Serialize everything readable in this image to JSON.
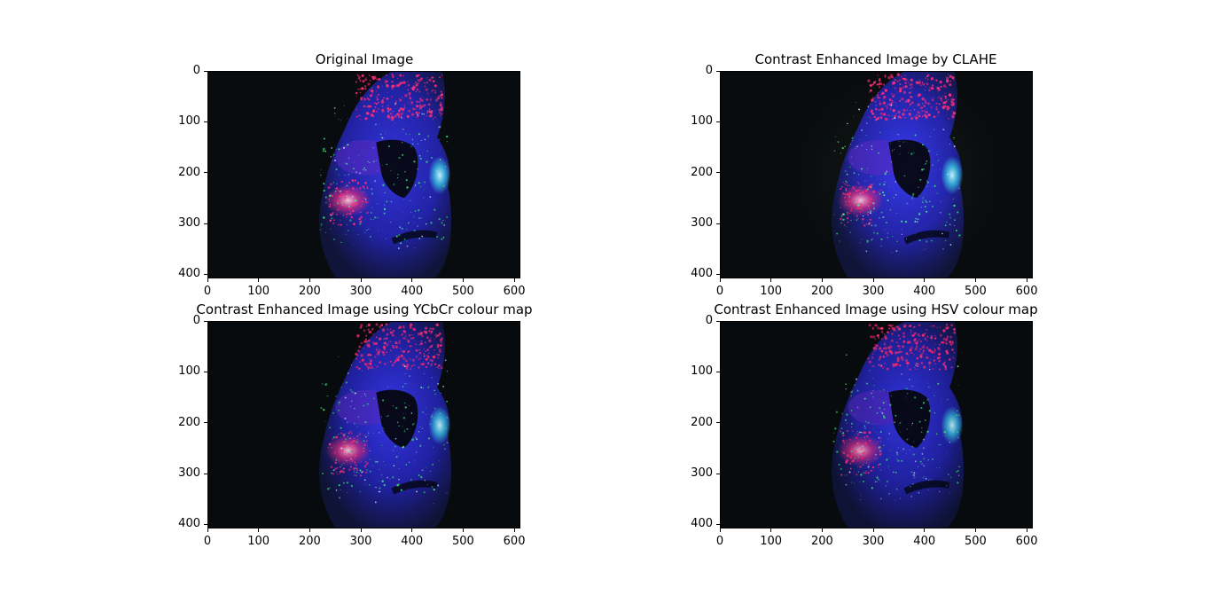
{
  "figure": {
    "panels": [
      {
        "id": "original",
        "title": "Original Image",
        "x_ticks": [
          "0",
          "100",
          "200",
          "300",
          "400",
          "500",
          "600"
        ],
        "y_ticks": [
          "0",
          "100",
          "200",
          "300",
          "400"
        ],
        "style": "original"
      },
      {
        "id": "clahe",
        "title": "Contrast Enhanced Image by CLAHE",
        "x_ticks": [
          "0",
          "100",
          "200",
          "300",
          "400",
          "500",
          "600"
        ],
        "y_ticks": [
          "0",
          "100",
          "200",
          "300",
          "400"
        ],
        "style": "clahe"
      },
      {
        "id": "ycbcr",
        "title": "Contrast Enhanced Image using YCbCr colour map",
        "x_ticks": [
          "0",
          "100",
          "200",
          "300",
          "400",
          "500",
          "600"
        ],
        "y_ticks": [
          "0",
          "100",
          "200",
          "300",
          "400"
        ],
        "style": "ycbcr"
      },
      {
        "id": "hsv",
        "title": "Contrast Enhanced Image using HSV colour map",
        "x_ticks": [
          "0",
          "100",
          "200",
          "300",
          "400",
          "500",
          "600"
        ],
        "y_ticks": [
          "0",
          "100",
          "200",
          "300",
          "400"
        ],
        "style": "hsv"
      }
    ],
    "image_extent": {
      "width": 612,
      "height": 408
    },
    "colors": {
      "background_dark": "#090c0f",
      "face_blue": "#2a2ad8",
      "face_violet": "#5a2ac0",
      "speckle_pink": "#ff2d78",
      "speckle_green": "#3dff7a",
      "highlight_cyan": "#38d8e8",
      "clahe_haze": "#1e2a1a"
    }
  }
}
